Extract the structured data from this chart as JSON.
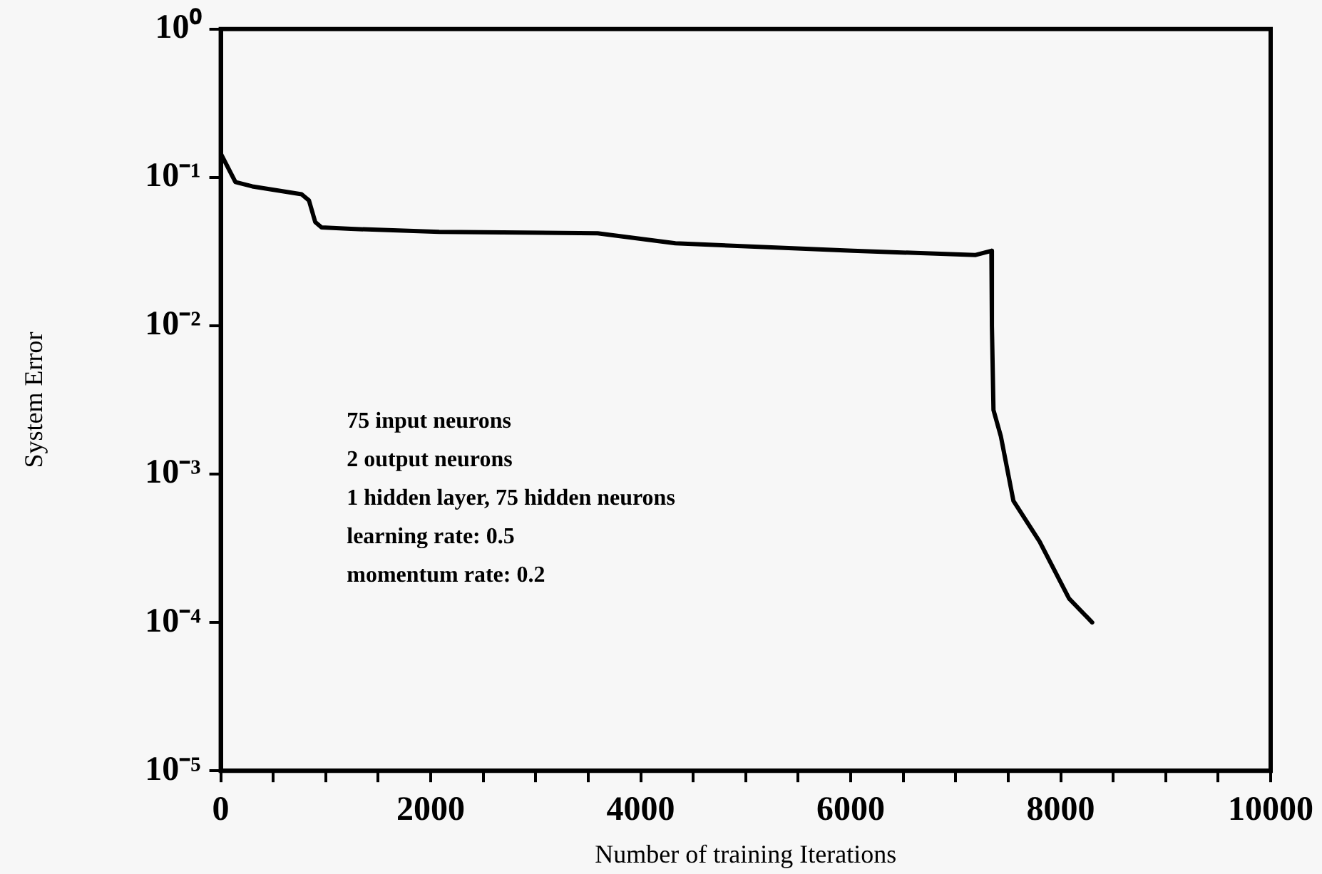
{
  "chart_data": {
    "type": "line",
    "xlabel": "Number of training Iterations",
    "ylabel": "System Error",
    "x": [
      0,
      140,
      300,
      770,
      840,
      900,
      960,
      1240,
      2080,
      3590,
      4330,
      6020,
      7190,
      7340,
      7345,
      7360,
      7430,
      7550,
      7800,
      8080,
      8300
    ],
    "series": [
      {
        "color": "#000000",
        "values": [
          0.145,
          0.093,
          0.087,
          0.077,
          0.07,
          0.05,
          0.046,
          0.045,
          0.043,
          0.042,
          0.036,
          0.032,
          0.03,
          0.032,
          0.01,
          0.0027,
          0.0018,
          0.00066,
          0.00035,
          0.000145,
          0.0001
        ]
      }
    ],
    "log": "y",
    "grid": false,
    "legend": false,
    "marker": "none",
    "line_style": "solid",
    "xlim": [
      0,
      10000
    ],
    "xticks": [
      0,
      {
        "value": 500,
        "label": null
      },
      {
        "value": 1000,
        "label": null
      },
      {
        "value": 1500,
        "label": null
      },
      2000,
      {
        "value": 2500,
        "label": null
      },
      {
        "value": 3000,
        "label": null
      },
      {
        "value": 3500,
        "label": null
      },
      4000,
      {
        "value": 4500,
        "label": null
      },
      {
        "value": 5000,
        "label": null
      },
      {
        "value": 5500,
        "label": null
      },
      6000,
      {
        "value": 6500,
        "label": null
      },
      {
        "value": 7000,
        "label": null
      },
      {
        "value": 7500,
        "label": null
      },
      8000,
      {
        "value": 8500,
        "label": null
      },
      {
        "value": 9000,
        "label": null
      },
      {
        "value": 9500,
        "label": null
      },
      10000
    ],
    "ylim": [
      1e-05,
      1
    ],
    "yticks": [
      {
        "value": 1e-05,
        "label": "10⁻⁵"
      },
      {
        "value": 0.0001,
        "label": "10⁻⁴"
      },
      {
        "value": 0.001,
        "label": "10⁻³"
      },
      {
        "value": 0.01,
        "label": "10⁻²"
      },
      {
        "value": 0.1,
        "label": "10⁻¹"
      },
      {
        "value": 1,
        "label": "10⁰"
      }
    ],
    "annotations": [
      "75 input neurons",
      "2 output neurons",
      "1 hidden layer, 75 hidden neurons",
      "learning rate: 0.5",
      "momentum rate: 0.2"
    ]
  }
}
